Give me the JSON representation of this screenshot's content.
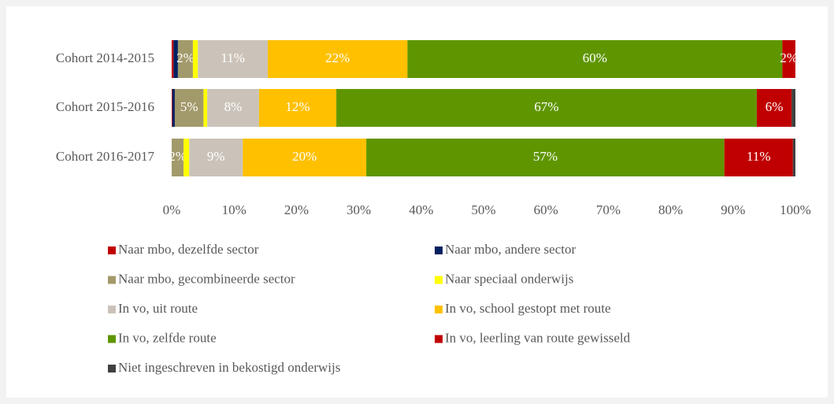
{
  "chart_data": {
    "type": "stacked-bar-horizontal",
    "categories": [
      "Cohort 2014-2015",
      "Cohort 2015-2016",
      "Cohort 2016-2017"
    ],
    "series": [
      {
        "name": "Naar mbo, dezelfde sector",
        "color": "#c00000",
        "values": [
          0.3,
          0.1,
          0
        ],
        "value_labels": [
          null,
          null,
          null
        ]
      },
      {
        "name": "Naar mbo, andere sector",
        "color": "#002060",
        "values": [
          0.7,
          0.4,
          0
        ],
        "value_labels": [
          null,
          null,
          null
        ]
      },
      {
        "name": "Naar mbo,  gecombineerde sector",
        "color": "#a39a6b",
        "values": [
          2.4,
          4.6,
          1.9
        ],
        "value_labels": [
          "2%",
          "5%",
          "2%"
        ]
      },
      {
        "name": "Naar speciaal onderwijs",
        "color": "#ffff00",
        "values": [
          0.8,
          0.6,
          0.9
        ],
        "value_labels": [
          null,
          null,
          null
        ]
      },
      {
        "name": "In vo, uit route",
        "color": "#cbc3b9",
        "values": [
          11.2,
          8.3,
          8.6
        ],
        "value_labels": [
          "11%",
          "8%",
          "9%"
        ]
      },
      {
        "name": "In vo, school gestopt met route",
        "color": "#ffc000",
        "values": [
          22.4,
          12.4,
          19.8
        ],
        "value_labels": [
          "22%",
          "12%",
          "20%"
        ]
      },
      {
        "name": "In vo, zelfde route",
        "color": "#5f9600",
        "values": [
          60.1,
          67.4,
          57.4
        ],
        "value_labels": [
          "60%",
          "67%",
          "57%"
        ]
      },
      {
        "name": "In vo, leerling van route gewisseld",
        "color": "#c00000",
        "values": [
          2.1,
          5.6,
          11.0
        ],
        "value_labels": [
          "2%",
          "6%",
          "11%"
        ]
      },
      {
        "name": "Niet ingeschreven in bekostigd onderwijs",
        "color": "#404040",
        "values": [
          0,
          0.6,
          0.4
        ],
        "value_labels": [
          null,
          null,
          null
        ]
      }
    ],
    "xlim": [
      0,
      100
    ],
    "xticks": [
      {
        "value": 0,
        "label": "0%"
      },
      {
        "value": 10,
        "label": "10%"
      },
      {
        "value": 20,
        "label": "20%"
      },
      {
        "value": 30,
        "label": "30%"
      },
      {
        "value": 40,
        "label": "40%"
      },
      {
        "value": 50,
        "label": "50%"
      },
      {
        "value": 60,
        "label": "60%"
      },
      {
        "value": 70,
        "label": "70%"
      },
      {
        "value": 80,
        "label": "80%"
      },
      {
        "value": 90,
        "label": "90%"
      },
      {
        "value": 100,
        "label": "100%"
      }
    ]
  }
}
